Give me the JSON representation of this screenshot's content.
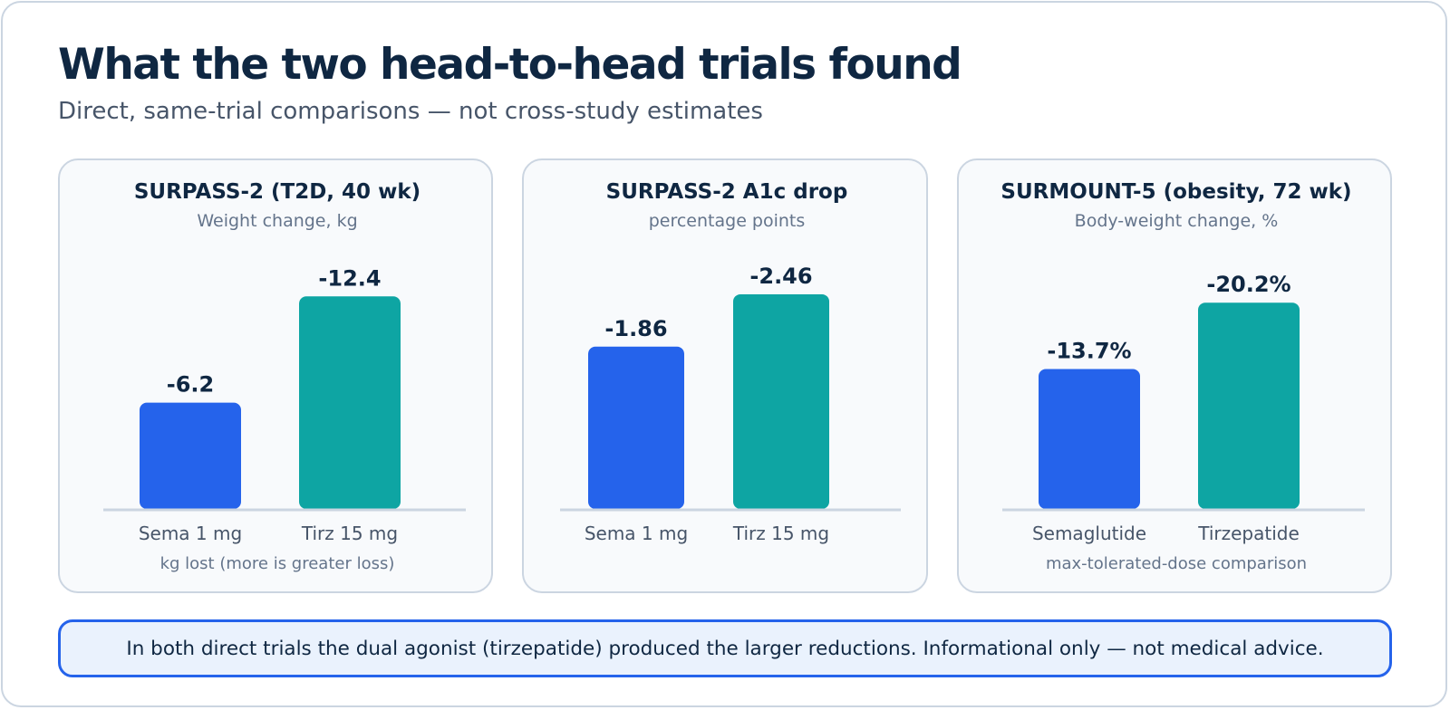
{
  "title": "What the two head-to-head trials found",
  "subtitle": "Direct, same-trial comparisons — not cross-study estimates",
  "colors": {
    "semaglutide": "#2563eb",
    "tirzepatide": "#0ea5a3",
    "text_dark": "#0f2742",
    "text_muted": "#64748b",
    "axis": "#cbd5e1"
  },
  "chart_data": [
    {
      "type": "bar",
      "title": "SURPASS-2 (T2D, 40 wk)",
      "subtitle": "Weight change, kg",
      "categories": [
        "Sema 1 mg",
        "Tirz 15 mg"
      ],
      "values": [
        -6.2,
        -12.4
      ],
      "value_labels": [
        "-6.2",
        "-12.4"
      ],
      "note": "kg lost (more is greater loss)",
      "scale_max": 14
    },
    {
      "type": "bar",
      "title": "SURPASS-2 A1c drop",
      "subtitle": "percentage points",
      "categories": [
        "Sema 1 mg",
        "Tirz 15 mg"
      ],
      "values": [
        -1.86,
        -2.46
      ],
      "value_labels": [
        "-1.86",
        "-2.46"
      ],
      "note": "",
      "scale_max": 2.75
    },
    {
      "type": "bar",
      "title": "SURMOUNT-5 (obesity, 72 wk)",
      "subtitle": "Body-weight change, %",
      "categories": [
        "Semaglutide",
        "Tirzepatide"
      ],
      "values": [
        -13.7,
        -20.2
      ],
      "value_labels": [
        "-13.7%",
        "-20.2%"
      ],
      "note": "max-tolerated-dose comparison",
      "scale_max": 23.5
    }
  ],
  "footer_note": "In both direct trials the dual agonist (tirzepatide) produced the larger reductions. Informational only — not medical advice."
}
